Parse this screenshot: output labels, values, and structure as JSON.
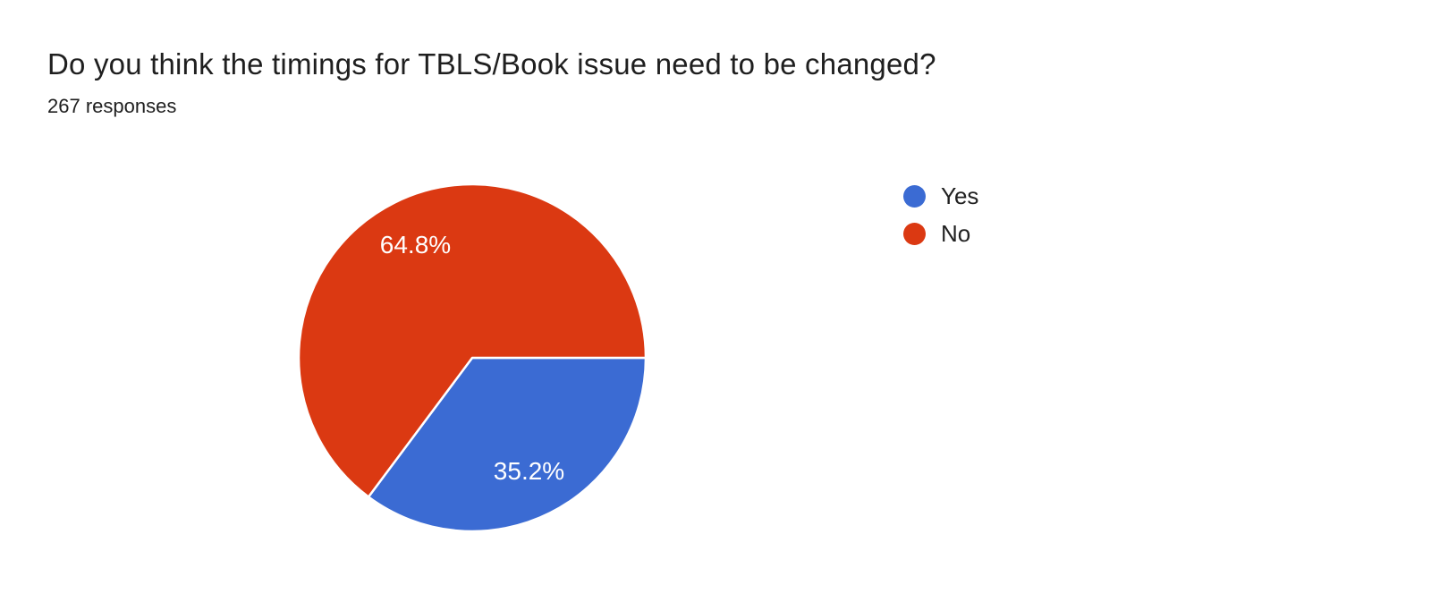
{
  "header": {
    "title": "Do you think the timings for TBLS/Book issue need to be changed?",
    "subtitle": "267 responses"
  },
  "chart_data": {
    "type": "pie",
    "title": "Do you think the timings for TBLS/Book issue need to be changed?",
    "responses_count": 267,
    "categories": [
      "Yes",
      "No"
    ],
    "values": [
      35.2,
      64.8
    ],
    "value_labels": [
      "35.2%",
      "64.8%"
    ],
    "colors": [
      "#3B6BD3",
      "#DB3912"
    ],
    "slice_label_color": "#ffffff",
    "slice_border_color": "#ffffff",
    "legend_position": "right",
    "start_angle_deg": 0,
    "direction": "clockwise"
  }
}
